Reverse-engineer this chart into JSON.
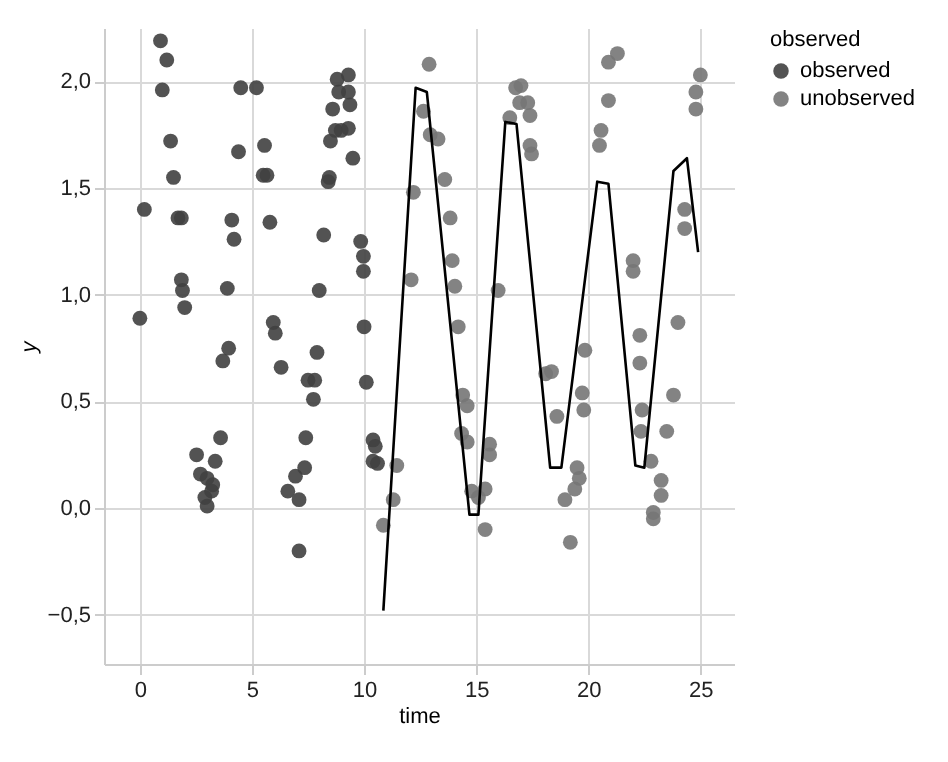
{
  "chart_data": {
    "type": "scatter",
    "xlabel": "time",
    "ylabel": "y",
    "legend_title": "observed",
    "legend": "right",
    "grid": true,
    "marker": "circle",
    "xlim": [
      -1.6,
      26.5
    ],
    "ylim": [
      -0.73,
      2.25
    ],
    "xticks": [
      0,
      5,
      10,
      15,
      20,
      25
    ],
    "yticks": [
      {
        "value": -0.5,
        "label": "−0,5"
      },
      {
        "value": 0,
        "label": "0,0"
      },
      {
        "value": 0.5,
        "label": "0,5"
      },
      {
        "value": 1,
        "label": "1,0"
      },
      {
        "value": 1.5,
        "label": "1,5"
      },
      {
        "value": 2,
        "label": "2,0"
      }
    ],
    "series": [
      {
        "name": "observed",
        "color": "#404040",
        "x": [
          0.0,
          0.2,
          0.92,
          1.2,
          1.0,
          1.37,
          1.5,
          1.7,
          1.85,
          1.85,
          1.9,
          2.0,
          2.53,
          2.7,
          3.0,
          2.9,
          3.0,
          3.2,
          3.36,
          3.6,
          3.25,
          3.7,
          3.96,
          3.9,
          4.1,
          4.2,
          4.4,
          4.5,
          5.2,
          5.56,
          5.5,
          5.67,
          5.8,
          5.95,
          6.04,
          6.3,
          6.6,
          6.94,
          7.35,
          7.1,
          7.1,
          7.4,
          7.5,
          7.8,
          7.74,
          7.9,
          8.0,
          8.2,
          8.4,
          8.45,
          8.5,
          8.6,
          8.8,
          8.87,
          8.72,
          8.98,
          9.3,
          9.3,
          9.37,
          9.5,
          9.3,
          9.85,
          9.97,
          9.97,
          10.0,
          10.1,
          10.4,
          10.5,
          10.4,
          10.6
        ],
        "values": [
          0.89,
          1.4,
          2.19,
          2.1,
          1.96,
          1.72,
          1.55,
          1.36,
          1.36,
          1.07,
          1.02,
          0.94,
          0.25,
          0.16,
          0.14,
          0.05,
          0.01,
          0.08,
          0.22,
          0.33,
          0.11,
          0.69,
          0.75,
          1.03,
          1.35,
          1.26,
          1.67,
          1.97,
          1.97,
          1.7,
          1.56,
          1.56,
          1.34,
          0.87,
          0.82,
          0.66,
          0.08,
          0.15,
          0.19,
          0.04,
          -0.2,
          0.33,
          0.6,
          0.6,
          0.51,
          0.73,
          1.02,
          1.28,
          1.53,
          1.55,
          1.72,
          1.87,
          2.01,
          1.95,
          1.77,
          1.77,
          2.03,
          1.78,
          1.89,
          1.64,
          1.95,
          1.25,
          1.18,
          1.11,
          0.85,
          0.59,
          0.32,
          0.29,
          0.22,
          0.21
        ]
      },
      {
        "name": "unobserved",
        "color": "#767676",
        "x": [
          11.46,
          11.3,
          10.86,
          12.1,
          12.2,
          12.9,
          12.65,
          12.95,
          13.3,
          13.6,
          13.84,
          13.93,
          14.05,
          14.2,
          14.4,
          14.6,
          14.35,
          14.6,
          14.8,
          15.1,
          15.4,
          15.4,
          15.6,
          15.6,
          15.98,
          16.5,
          16.76,
          17.0,
          16.94,
          17.3,
          17.4,
          17.4,
          17.47,
          18.1,
          18.36,
          18.6,
          18.96,
          19.2,
          19.4,
          19.5,
          19.6,
          19.73,
          19.85,
          19.8,
          20.57,
          20.5,
          20.9,
          20.9,
          21.3,
          22.0,
          22.0,
          22.3,
          22.3,
          22.4,
          22.35,
          22.8,
          23.25,
          23.25,
          22.9,
          22.9,
          23.5,
          23.8,
          24.0,
          24.3,
          24.3,
          24.8,
          25.0,
          24.8
        ],
        "values": [
          0.2,
          0.04,
          -0.08,
          1.07,
          1.48,
          2.08,
          1.86,
          1.75,
          1.73,
          1.54,
          1.36,
          1.16,
          1.04,
          0.85,
          0.53,
          0.48,
          0.35,
          0.31,
          0.08,
          0.05,
          0.09,
          -0.1,
          0.3,
          0.25,
          1.02,
          1.83,
          1.97,
          1.98,
          1.9,
          1.9,
          1.84,
          1.7,
          1.66,
          0.63,
          0.64,
          0.43,
          0.04,
          -0.16,
          0.09,
          0.19,
          0.14,
          0.54,
          0.74,
          0.46,
          1.77,
          1.7,
          1.91,
          2.09,
          2.13,
          1.16,
          1.11,
          0.81,
          0.68,
          0.46,
          0.36,
          0.22,
          0.13,
          0.06,
          -0.02,
          -0.05,
          0.36,
          0.53,
          0.87,
          1.4,
          1.31,
          1.95,
          2.03,
          1.87
        ]
      },
      {
        "type": "line",
        "marker": "none",
        "color": "#000000",
        "x": [
          10.86,
          12.3,
          12.8,
          14.7,
          15.1,
          16.3,
          16.8,
          18.3,
          18.8,
          20.4,
          20.9,
          22.1,
          22.5,
          23.8,
          24.4,
          24.9
        ],
        "values": [
          -0.48,
          1.97,
          1.95,
          -0.03,
          -0.03,
          1.81,
          1.8,
          0.19,
          0.19,
          1.53,
          1.52,
          0.2,
          0.19,
          1.58,
          1.64,
          1.2
        ]
      }
    ]
  }
}
